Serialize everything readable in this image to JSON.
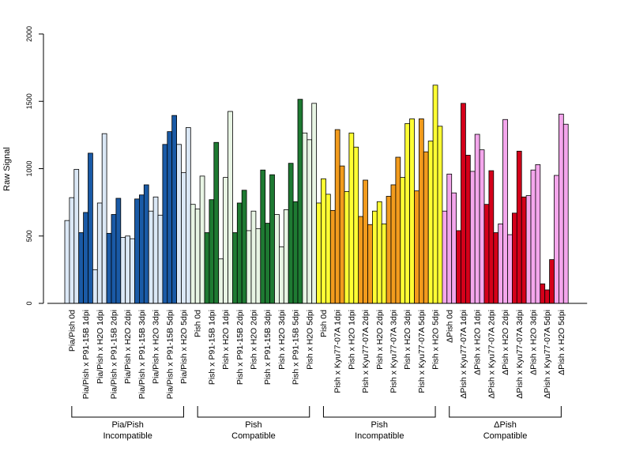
{
  "chart_data": {
    "type": "bar",
    "ylabel": "Raw Signal",
    "ylim": [
      0,
      2000
    ],
    "yticks": [
      0,
      500,
      1000,
      1500,
      2000
    ],
    "grid": false,
    "bar_edge_color": "#000000",
    "categories": [
      {
        "label": "Pia/Pish 0d",
        "color": "#dbe8f6",
        "values": [
          615,
          785,
          995
        ]
      },
      {
        "label": "Pia/Pish x P91-15B 1dpi",
        "color": "#1a5aa6",
        "values": [
          525,
          675,
          1115
        ]
      },
      {
        "label": "Pia/Pish x H2O 1dpi",
        "color": "#dbe8f6",
        "values": [
          250,
          745,
          1260
        ]
      },
      {
        "label": "Pia/Pish x P91-15B 2dpi",
        "color": "#1a5aa6",
        "values": [
          520,
          660,
          780
        ]
      },
      {
        "label": "Pia/Pish x H2O 2dpi",
        "color": "#dbe8f6",
        "values": [
          490,
          500,
          480
        ]
      },
      {
        "label": "Pia/Pish x P91-15B 3dpi",
        "color": "#1a5aa6",
        "values": [
          775,
          805,
          880
        ]
      },
      {
        "label": "Pia/Pish x H2O 3dpi",
        "color": "#dbe8f6",
        "values": [
          685,
          790,
          655
        ]
      },
      {
        "label": "Pia/Pish x P91-15B 5dpi",
        "color": "#1a5aa6",
        "values": [
          1180,
          1275,
          1395
        ]
      },
      {
        "label": "Pia/Pish x H2O 5dpi",
        "color": "#dbe8f6",
        "values": [
          1180,
          970,
          1305
        ]
      },
      {
        "label": "Pish 0d",
        "color": "#e8f5e4",
        "values": [
          735,
          700,
          945
        ]
      },
      {
        "label": "Pish x P91-15B 1dpi",
        "color": "#1e7a32",
        "values": [
          525,
          770,
          1195
        ]
      },
      {
        "label": "Pish x H2O 1dpi",
        "color": "#e8f5e4",
        "values": [
          330,
          935,
          1425
        ]
      },
      {
        "label": "Pish x P91-15B 2dpi",
        "color": "#1e7a32",
        "values": [
          525,
          745,
          840
        ]
      },
      {
        "label": "Pish x H2O 2dpi",
        "color": "#e8f5e4",
        "values": [
          540,
          685,
          555
        ]
      },
      {
        "label": "Pish x P91-15B 3dpi",
        "color": "#1e7a32",
        "values": [
          990,
          595,
          955
        ]
      },
      {
        "label": "Pish x H2O 3dpi",
        "color": "#e8f5e4",
        "values": [
          660,
          420,
          695
        ]
      },
      {
        "label": "Pish x P91-15B 5dpi",
        "color": "#1e7a32",
        "values": [
          1040,
          755,
          1515
        ]
      },
      {
        "label": "Pish x H2O 5dpi",
        "color": "#e8f5e4",
        "values": [
          1265,
          1215,
          1485
        ]
      },
      {
        "label": "Pish 0d",
        "color": "#ffff33",
        "values": [
          745,
          925,
          810
        ]
      },
      {
        "label": "Pish x Kyu77-07A 1dpi",
        "color": "#f29b1d",
        "values": [
          690,
          1290,
          1020
        ]
      },
      {
        "label": "Pish x H2O 1dpi",
        "color": "#ffff33",
        "values": [
          830,
          1265,
          1160
        ]
      },
      {
        "label": "Pish x Kyu77-07A 2dpi",
        "color": "#f29b1d",
        "values": [
          645,
          915,
          585
        ]
      },
      {
        "label": "Pish x H2O 2dpi",
        "color": "#ffff33",
        "values": [
          685,
          755,
          590
        ]
      },
      {
        "label": "Pish x Kyu77-07A 3dpi",
        "color": "#f29b1d",
        "values": [
          795,
          880,
          1085
        ]
      },
      {
        "label": "Pish x H2O 3dpi",
        "color": "#ffff33",
        "values": [
          935,
          1335,
          1370
        ]
      },
      {
        "label": "Pish x Kyu77-07A 5dpi",
        "color": "#f29b1d",
        "values": [
          835,
          1370,
          1125
        ]
      },
      {
        "label": "Pish x H2O 5dpi",
        "color": "#ffff33",
        "values": [
          1205,
          1620,
          1315
        ]
      },
      {
        "label": "ΔPish 0d",
        "color": "#f4a6ec",
        "values": [
          685,
          960,
          820
        ]
      },
      {
        "label": "ΔPish x Kyu77-07A 1dpi",
        "color": "#d4001a",
        "values": [
          540,
          1485,
          1100
        ]
      },
      {
        "label": "ΔPish x H2O 1dpi",
        "color": "#f4a6ec",
        "values": [
          980,
          1255,
          1140
        ]
      },
      {
        "label": "ΔPish x Kyu77-07A 2dpi",
        "color": "#d4001a",
        "values": [
          735,
          985,
          525
        ]
      },
      {
        "label": "ΔPish x H2O 2dpi",
        "color": "#f4a6ec",
        "values": [
          590,
          1365,
          510
        ]
      },
      {
        "label": "ΔPish x Kyu77-07A 3dpi",
        "color": "#d4001a",
        "values": [
          670,
          1130,
          790
        ]
      },
      {
        "label": "ΔPish x H2O 3dpi",
        "color": "#f4a6ec",
        "values": [
          800,
          990,
          1030
        ]
      },
      {
        "label": "ΔPish x Kyu77-07A 5dpi",
        "color": "#d4001a",
        "values": [
          145,
          100,
          325
        ]
      },
      {
        "label": "ΔPish x H2O 5dpi",
        "color": "#f4a6ec",
        "values": [
          950,
          1405,
          1330
        ]
      }
    ],
    "groups": [
      {
        "lines": [
          "Pia/Pish",
          "Incompatible"
        ],
        "start": 0,
        "end": 8
      },
      {
        "lines": [
          "Pish",
          "Compatible"
        ],
        "start": 9,
        "end": 17
      },
      {
        "lines": [
          "Pish",
          "Incompatible"
        ],
        "start": 18,
        "end": 26
      },
      {
        "lines": [
          "ΔPish",
          "Compatible"
        ],
        "start": 27,
        "end": 35
      }
    ]
  }
}
